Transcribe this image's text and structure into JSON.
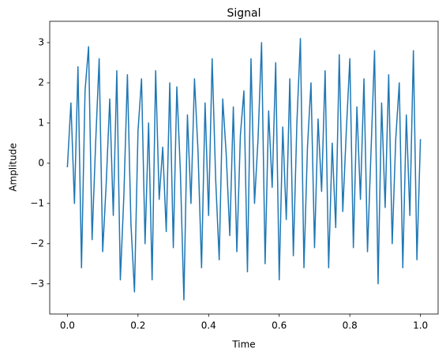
{
  "chart_data": {
    "type": "line",
    "title": "Signal",
    "x_label": "Time",
    "y_label": "Amplitude",
    "x": [
      0,
      0.01,
      0.02,
      0.03,
      0.04,
      0.05,
      0.06,
      0.07,
      0.08,
      0.09,
      0.1,
      0.11,
      0.12,
      0.13,
      0.14,
      0.15,
      0.16,
      0.17,
      0.18,
      0.19,
      0.2,
      0.21,
      0.22,
      0.23,
      0.24,
      0.25,
      0.26,
      0.27,
      0.28,
      0.29,
      0.3,
      0.31,
      0.32,
      0.33,
      0.34,
      0.35,
      0.36,
      0.37,
      0.38,
      0.39,
      0.4,
      0.41,
      0.42,
      0.43,
      0.44,
      0.45,
      0.46,
      0.47,
      0.48,
      0.49,
      0.5,
      0.51,
      0.52,
      0.53,
      0.54,
      0.55,
      0.56,
      0.57,
      0.58,
      0.59,
      0.6,
      0.61,
      0.62,
      0.63,
      0.64,
      0.65,
      0.66,
      0.67,
      0.68,
      0.69,
      0.7,
      0.71,
      0.72,
      0.73,
      0.74,
      0.75,
      0.76,
      0.77,
      0.78,
      0.79,
      0.8,
      0.81,
      0.82,
      0.83,
      0.84,
      0.85,
      0.86,
      0.87,
      0.88,
      0.89,
      0.9,
      0.91,
      0.92,
      0.93,
      0.94,
      0.95,
      0.96,
      0.97,
      0.98,
      0.99,
      1
    ],
    "values": [
      -0.1,
      1.5,
      -1.0,
      2.4,
      -2.6,
      1.8,
      2.9,
      -1.9,
      0.5,
      2.6,
      -2.2,
      -0.5,
      1.6,
      -1.3,
      2.3,
      -2.9,
      -0.8,
      2.2,
      -1.5,
      -3.2,
      0.8,
      2.1,
      -2.0,
      1.0,
      -2.9,
      2.3,
      -0.9,
      0.4,
      -1.7,
      2.0,
      -2.1,
      1.9,
      -0.2,
      -3.4,
      1.2,
      -1.0,
      2.1,
      0.3,
      -2.6,
      1.5,
      -1.3,
      2.6,
      -0.4,
      -2.4,
      1.6,
      0.2,
      -1.8,
      1.4,
      -2.2,
      0.7,
      1.8,
      -2.7,
      2.6,
      -1.0,
      0.6,
      3.0,
      -2.5,
      1.3,
      -0.6,
      2.5,
      -2.9,
      0.9,
      -1.4,
      2.1,
      -2.3,
      1.0,
      3.1,
      -2.6,
      0.4,
      2.0,
      -2.1,
      1.1,
      -0.7,
      2.3,
      -2.6,
      0.5,
      -1.6,
      2.7,
      -1.2,
      0.8,
      2.6,
      -2.1,
      1.4,
      -0.9,
      2.1,
      -2.2,
      0.3,
      2.8,
      -3.0,
      1.5,
      -1.1,
      2.2,
      -2.0,
      0.6,
      2.0,
      -2.6,
      1.2,
      -1.3,
      2.8,
      -2.4,
      0.6
    ],
    "color": "#1f77b4",
    "xlim": [
      -0.05,
      1.05
    ],
    "ylim": [
      -3.75,
      3.53
    ],
    "xticks": [
      {
        "value": 0,
        "label": "0.0"
      },
      0.2,
      0.4,
      0.6,
      0.8,
      {
        "value": 1,
        "label": "1.0"
      }
    ],
    "yticks": [
      {
        "value": -3,
        "label": "−3"
      },
      {
        "value": -2,
        "label": "−2"
      },
      {
        "value": -1,
        "label": "−1"
      },
      0,
      1,
      2,
      3
    ],
    "grid": false
  }
}
